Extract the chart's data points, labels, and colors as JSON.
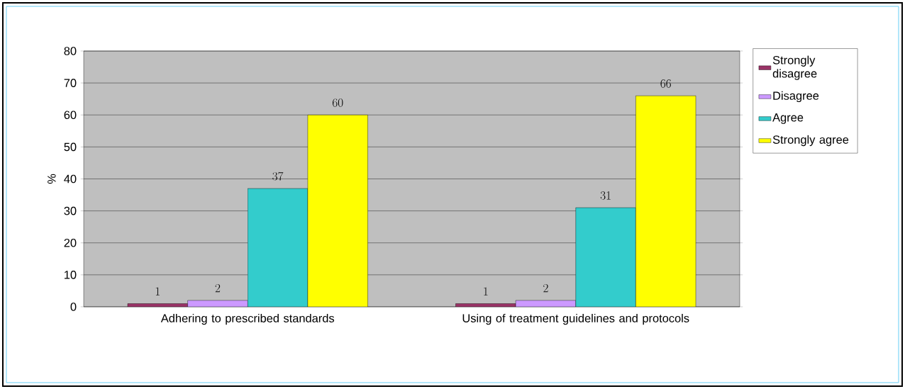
{
  "chart_data": {
    "type": "bar",
    "ylabel": "%",
    "categories": [
      "Adhering to prescribed standards",
      "Using of treatment guidelines and protocols"
    ],
    "series": [
      {
        "name": "Strongly disagree",
        "color": "#993366",
        "values": [
          1,
          1
        ]
      },
      {
        "name": "Disagree",
        "color": "#cc99ff",
        "values": [
          2,
          2
        ]
      },
      {
        "name": "Agree",
        "color": "#33cccc",
        "values": [
          37,
          31
        ]
      },
      {
        "name": "Strongly agree",
        "color": "#ffff00",
        "values": [
          60,
          66
        ]
      }
    ],
    "ylim": [
      0,
      80
    ],
    "yticks": [
      0,
      10,
      20,
      30,
      40,
      50,
      60,
      70,
      80
    ],
    "grid": "y",
    "legend": "right",
    "data_labels": true
  }
}
